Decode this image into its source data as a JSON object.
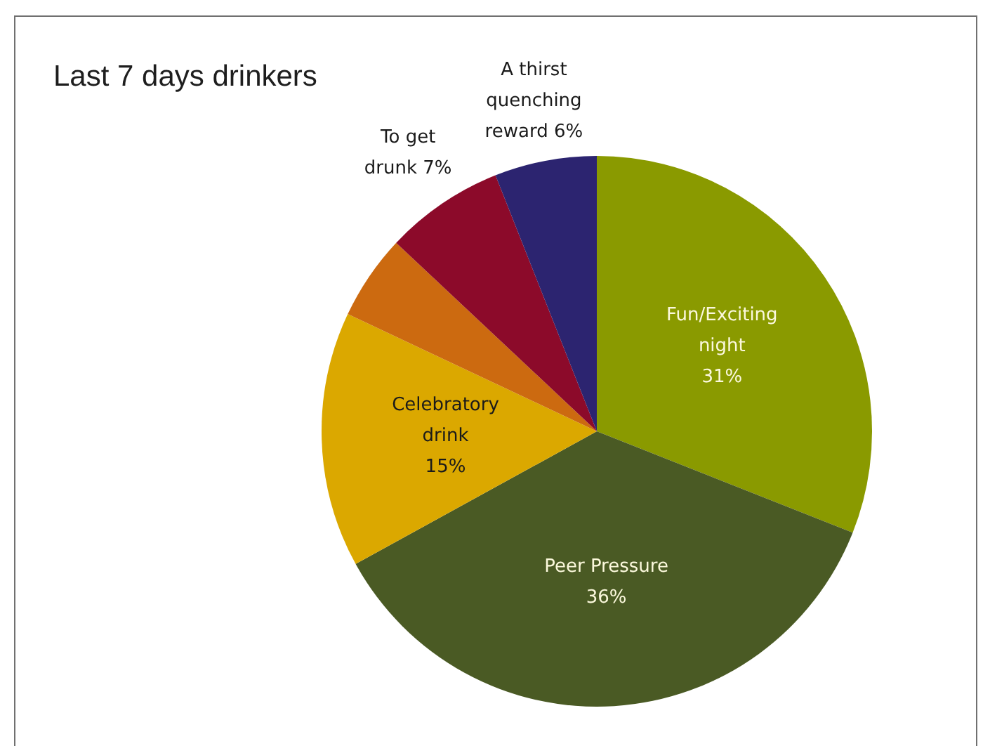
{
  "chart_data": {
    "type": "pie",
    "title": "Last 7 days drinkers",
    "categories": [
      "Fun/Exciting night",
      "Peer Pressure",
      "Celebratory drink",
      null,
      "To get drunk",
      "A thirst quenching reward"
    ],
    "values": [
      31,
      36,
      15,
      5,
      7,
      6
    ],
    "colors": [
      "#8a9a00",
      "#4a5a24",
      "#dba800",
      "#cc6a10",
      "#8c0a2a",
      "#2c2470"
    ],
    "value_labels": [
      "31%",
      "36%",
      "15%",
      null,
      "7%",
      "6%"
    ]
  }
}
